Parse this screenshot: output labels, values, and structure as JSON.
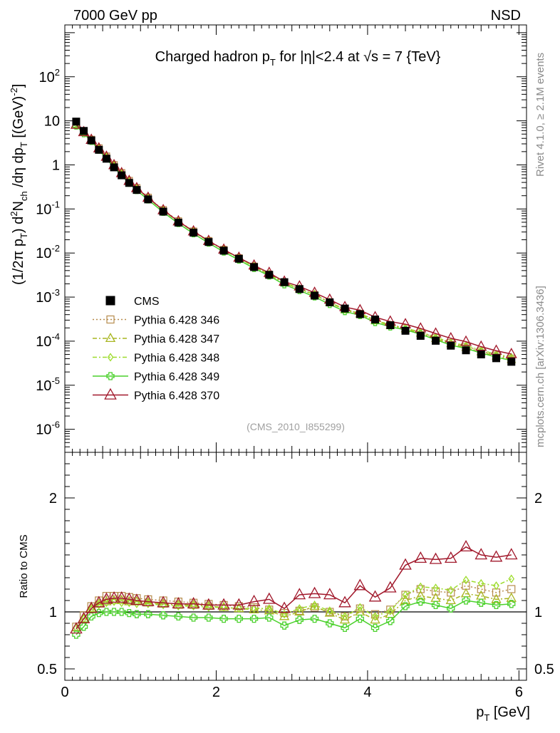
{
  "chart_data": {
    "type": "scatter",
    "header_left": "7000 GeV pp",
    "header_right": "NSD",
    "title": {
      "pre": "Charged hadron p",
      "sub": "T",
      "post": " for |η|<2.4 at √s = 7 {TeV}"
    },
    "watermark": "(CMS_2010_I855299)",
    "side_text_top": "Rivet 4.1.0, ≥ 2.1M events",
    "side_text_bottom": "mcplots.cern.ch [arXiv:1306.3436]",
    "ylabel_main": "(1/2π p_T) d²N_ch/dη dp_T [(GeV)⁻²]",
    "ylabel_ratio": "Ratio to CMS",
    "xlabel": "p_T [GeV]",
    "xlim": [
      0,
      6.1
    ],
    "ylim_main": [
      3e-07,
      1500
    ],
    "ylim_ratio": [
      0.4,
      2.4
    ],
    "x_ticks": [
      "0",
      "2",
      "4",
      "6"
    ],
    "y_ticks_main": [
      {
        "base": "10",
        "exp": "-6"
      },
      {
        "base": "10",
        "exp": "-5"
      },
      {
        "base": "10",
        "exp": "-4"
      },
      {
        "base": "10",
        "exp": "-3"
      },
      {
        "base": "10",
        "exp": "-2"
      },
      {
        "base": "10",
        "exp": "-1"
      },
      {
        "base": "1",
        "exp": ""
      },
      {
        "base": "10",
        "exp": ""
      },
      {
        "base": "10",
        "exp": "2"
      }
    ],
    "y_ticks_ratio": [
      "0.5",
      "1",
      "2"
    ],
    "x": [
      0.15,
      0.25,
      0.35,
      0.45,
      0.55,
      0.65,
      0.75,
      0.85,
      0.95,
      1.1,
      1.3,
      1.5,
      1.7,
      1.9,
      2.1,
      2.3,
      2.5,
      2.7,
      2.9,
      3.1,
      3.3,
      3.5,
      3.7,
      3.9,
      4.1,
      4.3,
      4.5,
      4.7,
      4.9,
      5.1,
      5.3,
      5.5,
      5.7,
      5.9
    ],
    "data": {
      "name": "CMS",
      "values": [
        9.6,
        5.9,
        3.6,
        2.2,
        1.38,
        0.88,
        0.58,
        0.39,
        0.27,
        0.165,
        0.087,
        0.049,
        0.029,
        0.0178,
        0.0113,
        0.0074,
        0.0048,
        0.0032,
        0.00218,
        0.00152,
        0.00108,
        0.00076,
        0.00055,
        0.00041,
        0.00031,
        0.00023,
        0.000172,
        0.000132,
        0.000102,
        7.9e-05,
        6.2e-05,
        5e-05,
        4.1e-05,
        3.4e-05
      ]
    },
    "series": [
      {
        "name": "Pythia 6.428 346",
        "color": "#b68b4c",
        "dash": "2,3",
        "marker": "square",
        "ratios": [
          0.87,
          0.97,
          1.05,
          1.1,
          1.14,
          1.14,
          1.14,
          1.13,
          1.12,
          1.11,
          1.1,
          1.09,
          1.08,
          1.07,
          1.06,
          1.05,
          1.04,
          1.02,
          0.99,
          1.01,
          1.04,
          1.0,
          0.96,
          1.03,
          0.98,
          1.02,
          1.15,
          1.2,
          1.18,
          1.17,
          1.23,
          1.2,
          1.17,
          1.2
        ]
      },
      {
        "name": "Pythia 6.428 347",
        "color": "#a8b520",
        "dash": "6,3,2,3",
        "marker": "triangle",
        "ratios": [
          0.86,
          0.94,
          1.03,
          1.07,
          1.09,
          1.1,
          1.1,
          1.09,
          1.09,
          1.08,
          1.07,
          1.06,
          1.06,
          1.05,
          1.04,
          1.03,
          1.02,
          1.01,
          0.96,
          1.0,
          1.05,
          0.99,
          0.93,
          1.0,
          0.93,
          0.98,
          1.1,
          1.14,
          1.12,
          1.1,
          1.16,
          1.14,
          1.11,
          1.12
        ]
      },
      {
        "name": "Pythia 6.428 348",
        "color": "#9ddc2c",
        "dash": "6,3,2,3",
        "marker": "diamond",
        "ratios": [
          0.86,
          0.94,
          1.02,
          1.06,
          1.08,
          1.09,
          1.08,
          1.08,
          1.07,
          1.07,
          1.06,
          1.05,
          1.05,
          1.04,
          1.04,
          1.03,
          1.03,
          1.03,
          0.98,
          1.03,
          1.06,
          1.01,
          0.96,
          1.04,
          0.96,
          1.01,
          1.15,
          1.22,
          1.21,
          1.19,
          1.28,
          1.25,
          1.23,
          1.29
        ]
      },
      {
        "name": "Pythia 6.428 349",
        "color": "#4ad12b",
        "dash": "",
        "marker": "cross",
        "ratios": [
          0.8,
          0.87,
          0.96,
          0.99,
          1.0,
          1.0,
          1.0,
          0.99,
          0.98,
          0.98,
          0.97,
          0.96,
          0.95,
          0.95,
          0.94,
          0.94,
          0.94,
          0.95,
          0.88,
          0.93,
          0.94,
          0.9,
          0.86,
          0.94,
          0.86,
          0.92,
          1.05,
          1.09,
          1.06,
          1.03,
          1.1,
          1.08,
          1.06,
          1.07
        ]
      },
      {
        "name": "Pythia 6.428 370",
        "color": "#a1182b",
        "dash": "",
        "marker": "open-triangle",
        "ratios": [
          0.85,
          0.94,
          1.03,
          1.08,
          1.11,
          1.12,
          1.12,
          1.11,
          1.1,
          1.09,
          1.08,
          1.07,
          1.07,
          1.06,
          1.06,
          1.06,
          1.09,
          1.11,
          1.03,
          1.15,
          1.16,
          1.15,
          1.08,
          1.23,
          1.13,
          1.21,
          1.41,
          1.47,
          1.46,
          1.47,
          1.57,
          1.5,
          1.48,
          1.5
        ]
      }
    ]
  }
}
